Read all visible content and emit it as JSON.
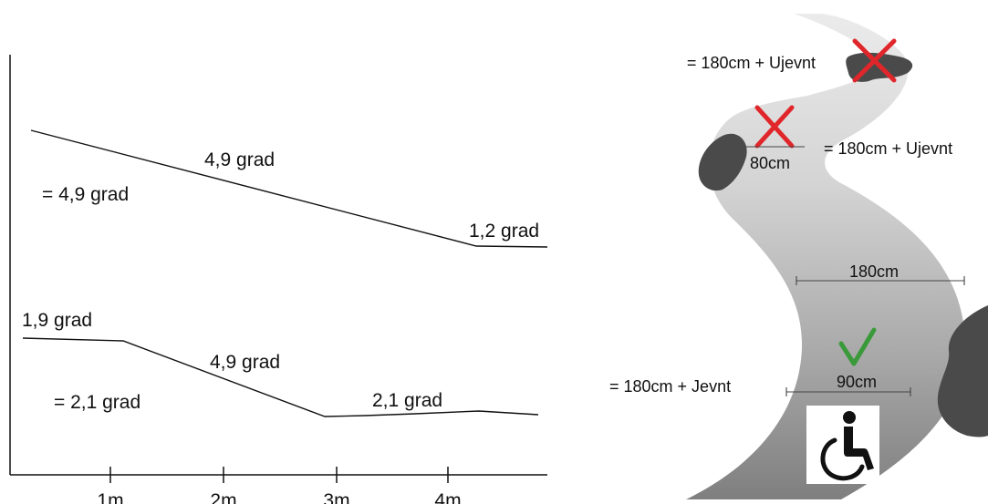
{
  "slope_diagram": {
    "x_ticks": [
      "1m",
      "2m",
      "3m",
      "4m"
    ],
    "profile_top": {
      "summary": "= 4,9 grad",
      "segments": [
        "4,9 grad",
        "1,2 grad"
      ]
    },
    "profile_bottom": {
      "summary": "= 2,1 grad",
      "segments": [
        "1,9 grad",
        "4,9 grad",
        "2,1 grad"
      ]
    }
  },
  "path_diagram": {
    "top_label": "= 180cm + Ujevnt",
    "middle_right_label": "= 180cm + Ujevnt",
    "narrow_width": "80cm",
    "full_width": "180cm",
    "ok_width": "90cm",
    "bottom_label": "= 180cm + Jevnt",
    "colors": {
      "cross": "#e0262a",
      "check": "#3a9a3a",
      "path_light": "#e6e6e6",
      "path_dark": "#8a8a8a",
      "obstacle": "#4a4a4a"
    },
    "icon": "wheelchair-icon"
  }
}
